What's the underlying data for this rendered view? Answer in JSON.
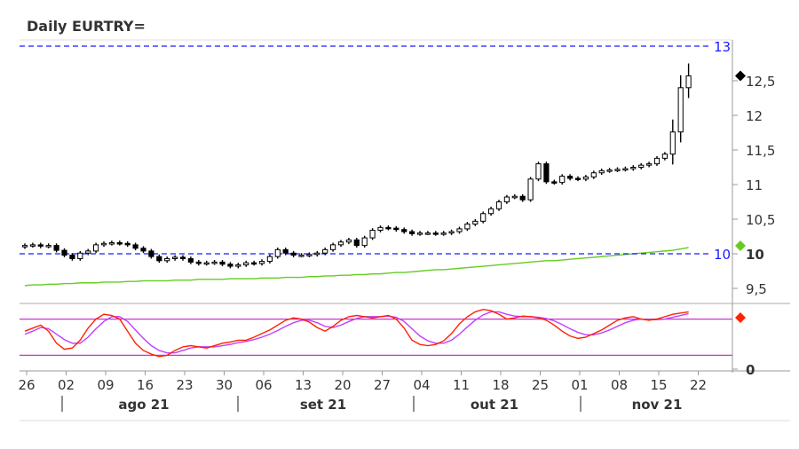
{
  "title": "Daily EURTRY=",
  "colors": {
    "candle": "#000000",
    "candle_up_fill": "#ffffff",
    "ma": "#66cc22",
    "ref_line": "#1a1aff",
    "osc_fast": "#ff2200",
    "osc_slow": "#c040ff",
    "osc_band": "#cc33cc",
    "axis": "#999999",
    "marker_last": "#000000",
    "marker_ma": "#66cc22",
    "marker_osc": "#ff2200"
  },
  "chart_data": {
    "type": "candlestick",
    "y_axis": {
      "range": [
        9.3,
        13.0
      ],
      "ticks": [
        "9,5",
        "10",
        "10,5",
        "11",
        "11,5",
        "12",
        "12,5"
      ],
      "tick_values": [
        9.5,
        10,
        10.5,
        11,
        11.5,
        12,
        12.5
      ]
    },
    "reference_lines": [
      {
        "value": 13,
        "label": "13"
      },
      {
        "value": 10,
        "label": "10"
      }
    ],
    "x_axis": {
      "day_ticks": [
        "26",
        "02",
        "09",
        "16",
        "23",
        "30",
        "06",
        "13",
        "20",
        "27",
        "04",
        "11",
        "18",
        "25",
        "01",
        "08",
        "15",
        "22"
      ],
      "months": [
        "ago 21",
        "set 21",
        "out 21",
        "nov 21"
      ]
    },
    "dates": [
      "07-26",
      "07-27",
      "07-28",
      "07-29",
      "07-30",
      "08-02",
      "08-03",
      "08-04",
      "08-05",
      "08-06",
      "08-09",
      "08-10",
      "08-11",
      "08-12",
      "08-13",
      "08-16",
      "08-17",
      "08-18",
      "08-19",
      "08-20",
      "08-23",
      "08-24",
      "08-25",
      "08-26",
      "08-27",
      "08-30",
      "08-31",
      "09-01",
      "09-02",
      "09-03",
      "09-06",
      "09-07",
      "09-08",
      "09-09",
      "09-10",
      "09-13",
      "09-14",
      "09-15",
      "09-16",
      "09-17",
      "09-20",
      "09-21",
      "09-22",
      "09-23",
      "09-24",
      "09-27",
      "09-28",
      "09-29",
      "09-30",
      "10-01",
      "10-04",
      "10-05",
      "10-06",
      "10-07",
      "10-08",
      "10-11",
      "10-12",
      "10-13",
      "10-14",
      "10-15",
      "10-18",
      "10-19",
      "10-20",
      "10-21",
      "10-22",
      "10-25",
      "10-26",
      "10-27",
      "10-28",
      "10-29",
      "11-01",
      "11-02",
      "11-03",
      "11-04",
      "11-05",
      "11-08",
      "11-09",
      "11-10",
      "11-11",
      "11-12",
      "11-15",
      "11-16",
      "11-17",
      "11-18",
      "11-19"
    ],
    "close": [
      10.12,
      10.13,
      10.11,
      10.12,
      10.05,
      9.98,
      9.93,
      10.01,
      10.04,
      10.13,
      10.15,
      10.16,
      10.15,
      10.13,
      10.08,
      10.04,
      9.96,
      9.9,
      9.93,
      9.95,
      9.93,
      9.88,
      9.86,
      9.87,
      9.88,
      9.85,
      9.82,
      9.84,
      9.87,
      9.86,
      9.89,
      9.96,
      10.06,
      10.01,
      9.98,
      9.98,
      9.99,
      10.01,
      10.06,
      10.13,
      10.17,
      10.2,
      10.12,
      10.23,
      10.34,
      10.38,
      10.37,
      10.35,
      10.32,
      10.29,
      10.3,
      10.3,
      10.29,
      10.3,
      10.32,
      10.36,
      10.43,
      10.47,
      10.58,
      10.65,
      10.75,
      10.82,
      10.83,
      10.78,
      11.08,
      11.3,
      11.04,
      11.03,
      11.12,
      11.09,
      11.08,
      11.11,
      11.17,
      11.2,
      11.21,
      11.22,
      11.23,
      11.25,
      11.28,
      11.3,
      11.38,
      11.44,
      11.76,
      12.4,
      12.57
    ],
    "ma": [
      9.54,
      9.55,
      9.55,
      9.56,
      9.56,
      9.57,
      9.57,
      9.58,
      9.58,
      9.58,
      9.59,
      9.59,
      9.59,
      9.6,
      9.6,
      9.61,
      9.61,
      9.61,
      9.61,
      9.62,
      9.62,
      9.62,
      9.63,
      9.63,
      9.63,
      9.63,
      9.64,
      9.64,
      9.64,
      9.64,
      9.65,
      9.65,
      9.65,
      9.66,
      9.66,
      9.66,
      9.67,
      9.67,
      9.68,
      9.68,
      9.69,
      9.69,
      9.7,
      9.7,
      9.71,
      9.71,
      9.72,
      9.73,
      9.73,
      9.74,
      9.75,
      9.76,
      9.77,
      9.77,
      9.78,
      9.79,
      9.8,
      9.81,
      9.82,
      9.83,
      9.84,
      9.85,
      9.86,
      9.87,
      9.88,
      9.89,
      9.9,
      9.9,
      9.91,
      9.92,
      9.93,
      9.94,
      9.95,
      9.96,
      9.97,
      9.98,
      9.99,
      10.0,
      10.01,
      10.02,
      10.03,
      10.04,
      10.05,
      10.07,
      10.09
    ],
    "oscillator": {
      "band_lines": [
        80,
        20
      ],
      "y_ticks": [
        "0"
      ],
      "fast": [
        60,
        65,
        70,
        60,
        40,
        30,
        32,
        45,
        65,
        80,
        88,
        86,
        80,
        60,
        40,
        28,
        22,
        18,
        20,
        28,
        34,
        36,
        34,
        32,
        36,
        40,
        42,
        45,
        45,
        50,
        56,
        62,
        70,
        78,
        82,
        80,
        75,
        66,
        60,
        68,
        78,
        84,
        86,
        84,
        82,
        84,
        86,
        80,
        65,
        45,
        38,
        36,
        38,
        44,
        56,
        72,
        84,
        92,
        96,
        94,
        88,
        80,
        82,
        85,
        84,
        82,
        78,
        70,
        60,
        52,
        48,
        50,
        56,
        62,
        70,
        78,
        82,
        84,
        80,
        78,
        80,
        84,
        88,
        90,
        92
      ],
      "slow": [
        55,
        60,
        66,
        64,
        55,
        46,
        40,
        40,
        50,
        64,
        76,
        84,
        84,
        76,
        62,
        48,
        36,
        28,
        24,
        24,
        28,
        32,
        34,
        34,
        34,
        36,
        38,
        41,
        43,
        46,
        50,
        55,
        61,
        68,
        74,
        78,
        78,
        74,
        68,
        66,
        70,
        76,
        81,
        84,
        84,
        84,
        85,
        83,
        76,
        64,
        52,
        44,
        40,
        40,
        45,
        55,
        67,
        78,
        87,
        92,
        92,
        88,
        85,
        84,
        84,
        83,
        81,
        77,
        71,
        64,
        58,
        54,
        54,
        57,
        62,
        68,
        74,
        78,
        80,
        79,
        79,
        80,
        83,
        86,
        89
      ]
    }
  }
}
